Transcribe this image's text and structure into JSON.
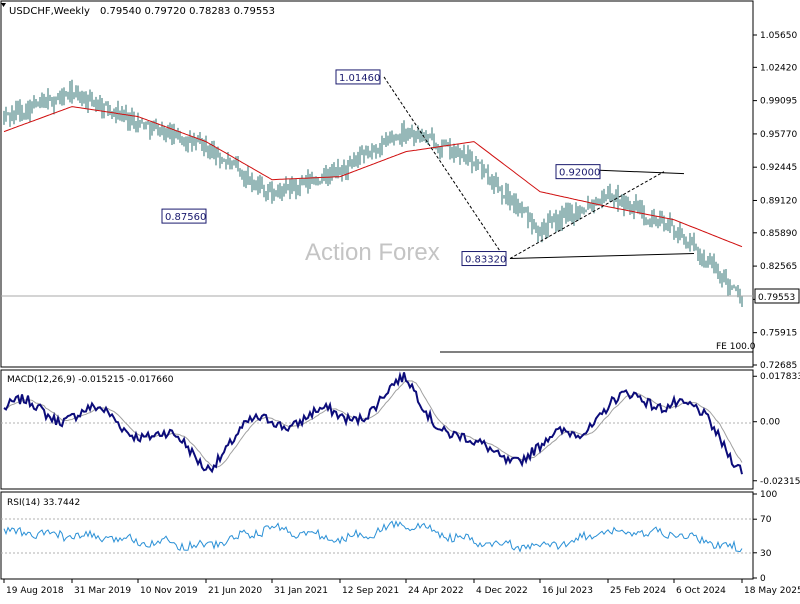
{
  "header": {
    "symbol_text": "USDCHF,Weekly",
    "ohlc_text": "0.79540 0.79720 0.78283 0.79553"
  },
  "watermark": "Action Forex",
  "price_panel": {
    "current_price_label": "0.79553",
    "fe_label": "FE 100.0",
    "annotations": [
      {
        "text": "1.01460",
        "week": 190,
        "price": 1.0146
      },
      {
        "text": "0.87560",
        "week": 103,
        "price": 0.8756
      },
      {
        "text": "0.83320",
        "week": 253,
        "price": 0.8332
      },
      {
        "text": "0.92000",
        "week": 300,
        "price": 0.92
      }
    ],
    "y_ticks": [
      "1.05650",
      "1.02420",
      "0.99095",
      "0.95770",
      "0.92445",
      "0.89120",
      "0.85890",
      "0.82565",
      "0.79240",
      "0.75915",
      "0.72685"
    ]
  },
  "macd_panel": {
    "label": "MACD(12,26,9) -0.015215 -0.017660",
    "y_ticks": [
      "0.017833",
      "0.00",
      "-0.023159"
    ]
  },
  "rsi_panel": {
    "label": "RSI(14) 33.7442",
    "y_ticks": [
      "100",
      "70",
      "30",
      "0"
    ]
  },
  "x_axis": {
    "tick_labels": [
      "19 Aug 2018",
      "31 Mar 2019",
      "10 Nov 2019",
      "21 Jun 2020",
      "31 Jan 2021",
      "12 Sep 2021",
      "24 Apr 2022",
      "4 Dec 2022",
      "16 Jul 2023",
      "25 Feb 2024",
      "6 Oct 2024",
      "18 May 2025"
    ]
  },
  "colors": {
    "bars": "#2e7070",
    "ma_line": "#d01010",
    "macd_line": "#0c0c7a",
    "signal_line": "#a0a0a0",
    "rsi_line": "#2a90d6",
    "label_text": "#1a1a6e"
  },
  "chart_data": [
    {
      "type": "ohlc",
      "title": "USDCHF,Weekly",
      "x": [
        "19 Aug 2018",
        "31 Mar 2019",
        "10 Nov 2019",
        "21 Jun 2020",
        "31 Jan 2021",
        "12 Sep 2021",
        "24 Apr 2022",
        "4 Dec 2022",
        "16 Jul 2023",
        "25 Feb 2024",
        "6 Oct 2024",
        "18 May 2025"
      ],
      "close": [
        0.975,
        0.998,
        0.97,
        0.944,
        0.897,
        0.92,
        0.962,
        0.93,
        0.862,
        0.898,
        0.862,
        0.8
      ],
      "last_bar": {
        "open": 0.7954,
        "high": 0.7972,
        "low": 0.78283,
        "close": 0.79553
      },
      "series": [
        {
          "name": "MA",
          "values": [
            0.96,
            0.985,
            0.975,
            0.95,
            0.912,
            0.915,
            0.94,
            0.95,
            0.9,
            0.885,
            0.872,
            0.845
          ]
        }
      ],
      "ylim": [
        0.72685,
        1.0565
      ]
    },
    {
      "type": "line",
      "title": "MACD(12,26,9) -0.015215 -0.017660",
      "x": [
        "19 Aug 2018",
        "31 Mar 2019",
        "10 Nov 2019",
        "21 Jun 2020",
        "31 Jan 2021",
        "12 Sep 2021",
        "24 Apr 2022",
        "4 Dec 2022",
        "16 Jul 2023",
        "25 Feb 2024",
        "6 Oct 2024",
        "18 May 2025"
      ],
      "series": [
        {
          "name": "MACD",
          "values": [
            0.005,
            0.004,
            -0.002,
            -0.015,
            0.002,
            0.001,
            0.014,
            -0.012,
            -0.012,
            0.006,
            0.01,
            -0.015215
          ]
        },
        {
          "name": "Signal",
          "values": [
            0.004,
            0.003,
            0.0,
            -0.013,
            -0.001,
            0.002,
            0.012,
            -0.008,
            -0.014,
            0.003,
            0.01,
            -0.01766
          ]
        }
      ],
      "ylim": [
        -0.026,
        0.02
      ]
    },
    {
      "type": "line",
      "title": "RSI(14) 33.7442",
      "x": [
        "19 Aug 2018",
        "31 Mar 2019",
        "10 Nov 2019",
        "21 Jun 2020",
        "31 Jan 2021",
        "12 Sep 2021",
        "24 Apr 2022",
        "4 Dec 2022",
        "16 Jul 2023",
        "25 Feb 2024",
        "6 Oct 2024",
        "18 May 2025"
      ],
      "series": [
        {
          "name": "RSI",
          "values": [
            55,
            50,
            45,
            38,
            60,
            45,
            65,
            42,
            36,
            55,
            52,
            33.7442
          ]
        }
      ],
      "ylim": [
        0,
        100
      ]
    }
  ]
}
